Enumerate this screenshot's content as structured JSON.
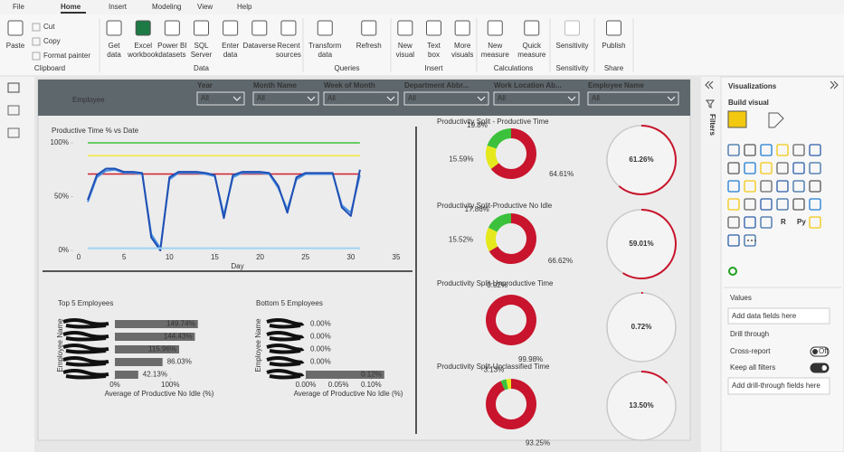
{
  "ribbon": {
    "tabs": [
      "File",
      "Home",
      "Insert",
      "Modeling",
      "View",
      "Help"
    ],
    "active_tab": 1,
    "groups": [
      {
        "label": "Clipboard",
        "buttons": [
          [
            "Paste"
          ]
        ],
        "small_buttons": [
          "Cut",
          "Copy",
          "Format painter"
        ]
      },
      {
        "label": "Data",
        "buttons": [
          [
            "Get",
            "data"
          ],
          [
            "Excel",
            "workbook"
          ],
          [
            "Power BI",
            "datasets"
          ],
          [
            "SQL",
            "Server"
          ],
          [
            "Enter",
            "data"
          ],
          [
            "Dataverse"
          ],
          [
            "Recent",
            "sources"
          ]
        ]
      },
      {
        "label": "Queries",
        "buttons": [
          [
            "Transform",
            "data"
          ],
          [
            "Refresh"
          ]
        ]
      },
      {
        "label": "Insert",
        "buttons": [
          [
            "New",
            "visual"
          ],
          [
            "Text",
            "box"
          ],
          [
            "More",
            "visuals"
          ]
        ]
      },
      {
        "label": "Calculations",
        "buttons": [
          [
            "New",
            "measure"
          ],
          [
            "Quick",
            "measure"
          ]
        ]
      },
      {
        "label": "Sensitivity",
        "buttons": [
          [
            "Sensitivity"
          ]
        ]
      },
      {
        "label": "Share",
        "buttons": [
          [
            "Publish"
          ]
        ]
      }
    ]
  },
  "report": {
    "title": "Employee",
    "slicers": [
      {
        "label": "Year",
        "value": "All"
      },
      {
        "label": "Month Name",
        "value": "All"
      },
      {
        "label": "Week of Month",
        "value": "All"
      },
      {
        "label": "Department Abbr...",
        "value": "All"
      },
      {
        "label": "Work Location Ab...",
        "value": "All"
      },
      {
        "label": "Employee Name",
        "value": "All"
      }
    ]
  },
  "filters_pane": {
    "label": "Filters"
  },
  "visualizations": {
    "title": "Visualizations",
    "subtitle": "Build visual",
    "icon_labels": [
      "R",
      "Py"
    ],
    "values_label": "Values",
    "values_placeholder": "Add data fields here",
    "drill_through": "Drill through",
    "toggles": [
      {
        "label": "Cross-report",
        "state": "Off",
        "on": false
      },
      {
        "label": "Keep all filters",
        "state": "On",
        "on": true
      }
    ],
    "drill_placeholder": "Add drill-through fields here"
  },
  "chart_data": [
    {
      "type": "line",
      "title": "Productive Time % vs Date",
      "x_label": "Day",
      "x": [
        1,
        2,
        3,
        4,
        5,
        6,
        7,
        8,
        9,
        10,
        11,
        12,
        13,
        14,
        15,
        16,
        17,
        18,
        19,
        20,
        21,
        22,
        23,
        24,
        25,
        26,
        27,
        28,
        29,
        30,
        31
      ],
      "series": [
        {
          "color": "#4a90e2",
          "values": [
            45,
            68,
            74,
            75,
            72,
            72,
            71,
            15,
            2,
            66,
            72,
            72,
            72,
            71,
            69,
            33,
            68,
            72,
            72,
            72,
            71,
            58,
            38,
            66,
            71,
            71,
            71,
            71,
            42,
            35,
            70
          ]
        },
        {
          "color": "#1f4fb4",
          "values": [
            47,
            70,
            76,
            76,
            73,
            73,
            72,
            12,
            0,
            68,
            73,
            73,
            73,
            72,
            70,
            30,
            70,
            73,
            73,
            73,
            72,
            60,
            35,
            68,
            72,
            72,
            72,
            72,
            40,
            32,
            75
          ]
        },
        {
          "color": "#9fd3f5",
          "values": [
            2,
            2,
            2,
            2,
            2,
            2,
            2,
            2,
            2,
            2,
            2,
            2,
            2,
            2,
            2,
            2,
            2,
            2,
            2,
            2,
            2,
            2,
            2,
            2,
            2,
            2,
            2,
            2,
            2,
            2,
            2
          ]
        }
      ],
      "reference_lines": [
        {
          "value": 100,
          "color": "#3cc13c"
        },
        {
          "value": 88,
          "color": "#f2ea3a"
        },
        {
          "value": 71,
          "color": "#d0202e"
        }
      ],
      "xlim": [
        0,
        35
      ],
      "xticks": [
        0,
        5,
        10,
        15,
        20,
        25,
        30,
        35
      ],
      "ylim": [
        0,
        100
      ],
      "yticks": [
        {
          "value": 0,
          "label": "0%"
        },
        {
          "value": 50,
          "label": "50%"
        },
        {
          "value": 100,
          "label": "100%"
        }
      ]
    },
    {
      "type": "donut",
      "title": "Productivity Split - Productive Time",
      "values": [
        19.8,
        15.59,
        64.61
      ],
      "value_labels": [
        "19.8%",
        "15.59%",
        "64.61%"
      ],
      "colors": [
        "#3cc13c",
        "#e4e81c",
        "#c8142c"
      ]
    },
    {
      "type": "donut",
      "title": "Productivity Split-Productive No Idle",
      "values": [
        17.86,
        15.52,
        66.62
      ],
      "value_labels": [
        "17.86%",
        "15.52%",
        "66.62%"
      ],
      "colors": [
        "#3cc13c",
        "#e4e81c",
        "#c8142c"
      ]
    },
    {
      "type": "donut",
      "title": "Productivity Split-Unproductive Time",
      "values": [
        0.02,
        99.98
      ],
      "value_labels": [
        "0.02%",
        "99.98%"
      ],
      "colors": [
        "#3cc13c",
        "#c8142c"
      ]
    },
    {
      "type": "donut",
      "title": "Productivity Split-Unclassified Time",
      "values": [
        3.13,
        3.62,
        93.25
      ],
      "value_labels": [
        "3.13%",
        null,
        "93.25%"
      ],
      "colors": [
        "#e4e81c",
        "#3cc13c",
        "#c8142c"
      ]
    },
    {
      "type": "gauge",
      "value": 61.26,
      "value_label": "61.26%",
      "color": "#c8142c"
    },
    {
      "type": "gauge",
      "value": 59.01,
      "value_label": "59.01%",
      "color": "#c8142c"
    },
    {
      "type": "gauge",
      "value": 0.72,
      "value_label": "0.72%",
      "color": "#c8142c"
    },
    {
      "type": "gauge",
      "value": 13.5,
      "value_label": "13.50%",
      "color": "#c8142c"
    },
    {
      "type": "hbar",
      "title": "Top 5 Employees",
      "y_label": "Employee Name",
      "x_label": "Average of Productive No Idle (%)",
      "categories": [
        null,
        null,
        null,
        null,
        null
      ],
      "values": [
        149.74,
        144.43,
        115.96,
        86.03,
        42.13
      ],
      "value_labels": [
        "149.74%",
        "144.43%",
        "115.96%",
        "86.03%",
        "42.13%"
      ],
      "color": "#6b6b6b",
      "xlim": [
        0,
        160
      ],
      "xticks": [
        {
          "value": 0,
          "label": "0%"
        },
        {
          "value": 100,
          "label": "100%"
        }
      ]
    },
    {
      "type": "hbar",
      "title": "Bottom 5 Employees",
      "y_label": "Employee Name",
      "x_label": "Average of Productive No Idle (%)",
      "categories": [
        null,
        null,
        null,
        null,
        null
      ],
      "values": [
        0,
        0,
        0,
        0,
        0.12
      ],
      "value_labels": [
        "0.00%",
        "0.00%",
        "0.00%",
        "0.00%",
        "0.12%"
      ],
      "color": "#6b6b6b",
      "xlim": [
        0,
        0.13
      ],
      "xticks": [
        {
          "value": 0,
          "label": "0.00%"
        },
        {
          "value": 0.05,
          "label": "0.05%"
        },
        {
          "value": 0.1,
          "label": "0.10%"
        }
      ]
    }
  ]
}
